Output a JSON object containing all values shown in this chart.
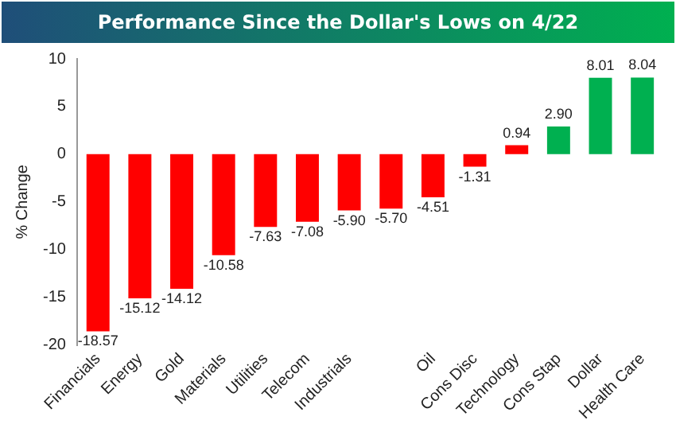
{
  "chart_data": {
    "type": "bar",
    "title": "Performance Since the Dollar's Lows on 4/22",
    "ylabel": "% Change",
    "categories": [
      "Financials",
      "Energy",
      "Gold",
      "Materials",
      "Utilities",
      "Telecom",
      "Industrials",
      null,
      "Oil",
      "Cons Disc",
      "Technology",
      "Cons Stap",
      "Dollar",
      "Health Care"
    ],
    "values": [
      -18.57,
      -15.12,
      -14.12,
      -10.58,
      -7.63,
      -7.08,
      -5.9,
      -5.7,
      -4.51,
      -1.31,
      0.94,
      2.9,
      8.01,
      8.04
    ],
    "colors": [
      "#ff0000",
      "#ff0000",
      "#ff0000",
      "#ff0000",
      "#ff0000",
      "#ff0000",
      "#ff0000",
      "#ff0000",
      "#ff0000",
      "#ff0000",
      "#ff0000",
      "#00b050",
      "#00b050",
      "#00b050"
    ],
    "value_labels": [
      "-18.57",
      "-15.12",
      "-14.12",
      "-10.58",
      "-7.63",
      "-7.08",
      "-5.90",
      "-5.70",
      "-4.51",
      "-1.31",
      "0.94",
      "2.90",
      "8.01",
      "8.04"
    ],
    "ylim": [
      -20,
      10
    ],
    "yticks": [
      -20,
      -15,
      -10,
      -5,
      0,
      5,
      10
    ],
    "grid": false,
    "legend": false
  }
}
